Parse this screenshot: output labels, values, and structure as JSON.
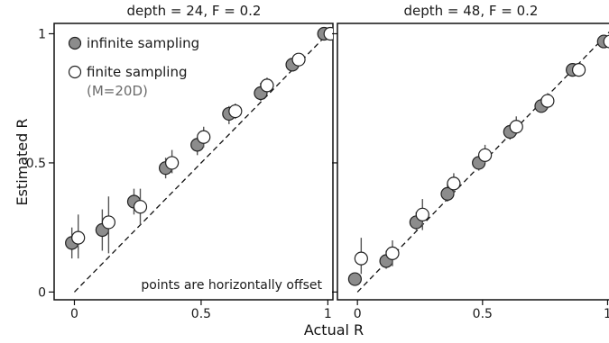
{
  "chart_data": {
    "type": "scatter",
    "ylabel": "Estimated R",
    "xlabel": "Actual R",
    "xlim": [
      -0.08,
      1.02
    ],
    "ylim": [
      -0.03,
      1.04
    ],
    "xticks": [
      {
        "v": 0,
        "label": "0"
      },
      {
        "v": 0.5,
        "label": "0.5"
      },
      {
        "v": 1,
        "label": "1"
      }
    ],
    "yticks": [
      {
        "v": 0,
        "label": "0"
      },
      {
        "v": 0.5,
        "label": "0.5"
      },
      {
        "v": 1,
        "label": "1"
      }
    ],
    "reference_line": "y = x (dashed)",
    "colors": {
      "infinite": "#8c8c8c",
      "finite": "#ffffff",
      "edge": "#222222",
      "errorbar": "#555555"
    },
    "legend": {
      "items": [
        {
          "marker": "filled",
          "label": "infinite sampling"
        },
        {
          "marker": "open",
          "label": "finite sampling"
        }
      ],
      "sublabel": "(M=20D)"
    },
    "note": "points are horizontally offset",
    "panels": [
      {
        "title": "depth = 24, F = 0.2",
        "series": [
          {
            "name": "infinite sampling",
            "x": [
              -0.01,
              0.11,
              0.235,
              0.36,
              0.485,
              0.61,
              0.735,
              0.86,
              0.985
            ],
            "y": [
              0.19,
              0.24,
              0.35,
              0.48,
              0.57,
              0.69,
              0.77,
              0.88,
              1.0
            ],
            "err": [
              [
                0.13,
                0.25
              ],
              [
                0.16,
                0.32
              ],
              [
                0.3,
                0.4
              ],
              [
                0.44,
                0.52
              ],
              [
                0.53,
                0.6
              ],
              [
                0.65,
                0.72
              ],
              [
                0.74,
                0.81
              ],
              [
                0.86,
                0.9
              ],
              [
                0.98,
                1.01
              ]
            ]
          },
          {
            "name": "finite sampling",
            "x": [
              0.015,
              0.135,
              0.26,
              0.385,
              0.51,
              0.635,
              0.76,
              0.885,
              1.01
            ],
            "y": [
              0.21,
              0.27,
              0.33,
              0.5,
              0.6,
              0.7,
              0.8,
              0.9,
              1.0
            ],
            "err": [
              [
                0.13,
                0.3
              ],
              [
                0.15,
                0.37
              ],
              [
                0.26,
                0.4
              ],
              [
                0.46,
                0.55
              ],
              [
                0.56,
                0.64
              ],
              [
                0.67,
                0.73
              ],
              [
                0.77,
                0.83
              ],
              [
                0.88,
                0.92
              ],
              [
                0.98,
                1.01
              ]
            ]
          }
        ]
      },
      {
        "title": "depth = 48, F = 0.2",
        "series": [
          {
            "name": "infinite sampling",
            "x": [
              -0.01,
              0.115,
              0.235,
              0.36,
              0.485,
              0.61,
              0.735,
              0.86,
              0.985
            ],
            "y": [
              0.05,
              0.12,
              0.27,
              0.38,
              0.5,
              0.62,
              0.72,
              0.86,
              0.97
            ],
            "err": [
              [
                0.03,
                0.07
              ],
              [
                0.09,
                0.16
              ],
              [
                0.24,
                0.31
              ],
              [
                0.35,
                0.42
              ],
              [
                0.47,
                0.53
              ],
              [
                0.59,
                0.65
              ],
              [
                0.7,
                0.75
              ],
              [
                0.84,
                0.88
              ],
              [
                0.96,
                0.98
              ]
            ]
          },
          {
            "name": "finite sampling",
            "x": [
              0.015,
              0.14,
              0.26,
              0.385,
              0.51,
              0.635,
              0.76,
              0.885,
              1.01
            ],
            "y": [
              0.13,
              0.15,
              0.3,
              0.42,
              0.53,
              0.64,
              0.74,
              0.86,
              0.97
            ],
            "err": [
              [
                0.07,
                0.21
              ],
              [
                0.1,
                0.2
              ],
              [
                0.24,
                0.36
              ],
              [
                0.38,
                0.46
              ],
              [
                0.5,
                0.57
              ],
              [
                0.61,
                0.68
              ],
              [
                0.71,
                0.77
              ],
              [
                0.84,
                0.88
              ],
              [
                0.96,
                0.98
              ]
            ]
          }
        ]
      }
    ]
  }
}
